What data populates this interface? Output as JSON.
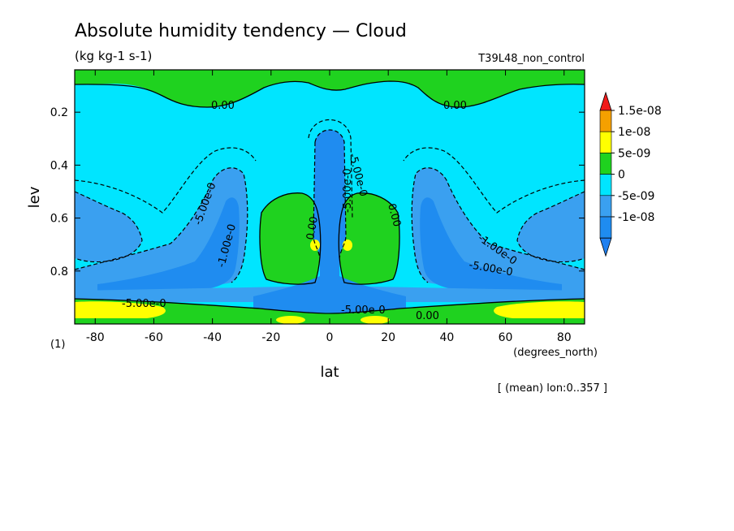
{
  "title": "Absolute humidity tendency — Cloud",
  "units": "(kg kg-1 s-1)",
  "experiment": "T39L48_non_control",
  "footer_note": "[ (mean) lon:0..357 ]",
  "panel_tag": "(1)",
  "chart_data": {
    "type": "heatmap",
    "xlabel": "lat",
    "xunits": "(degrees_north)",
    "ylabel": "lev",
    "xlim": [
      -87,
      87
    ],
    "ylim": [
      1.0,
      0.04
    ],
    "xticks": [
      -80,
      -60,
      -40,
      -20,
      0,
      20,
      40,
      60,
      80
    ],
    "yticks": [
      0.2,
      0.4,
      0.6,
      0.8
    ],
    "ytick_labels": [
      "0.2",
      "0.4",
      "0.6",
      "0.8"
    ],
    "colorbar": {
      "levels": [
        -1e-08,
        -5e-09,
        0,
        5e-09,
        1e-08,
        1.5e-08
      ],
      "labels": [
        "-1e-08",
        "-5e-09",
        "0",
        "5e-09",
        "1e-08",
        "1.5e-08"
      ],
      "colors": {
        "below": "#1f80f0",
        "b1": "#1f8cf0",
        "b2": "#3aa0f0",
        "b3": "#00e5ff",
        "b4": "#1fd21f",
        "b5": "#ffff00",
        "b6": "#f5a000",
        "above": "#f01a1a"
      }
    },
    "contour_labels": [
      "0.00",
      "0.00",
      "-5.00e-0",
      "-1.00e-0",
      "-5.00e-0",
      "-1.00e-0",
      "-5.00e-0",
      "-5.00e-0",
      "0.00",
      "0.00",
      "-5.00e-0",
      "-5.00e-0",
      "0.00"
    ]
  }
}
